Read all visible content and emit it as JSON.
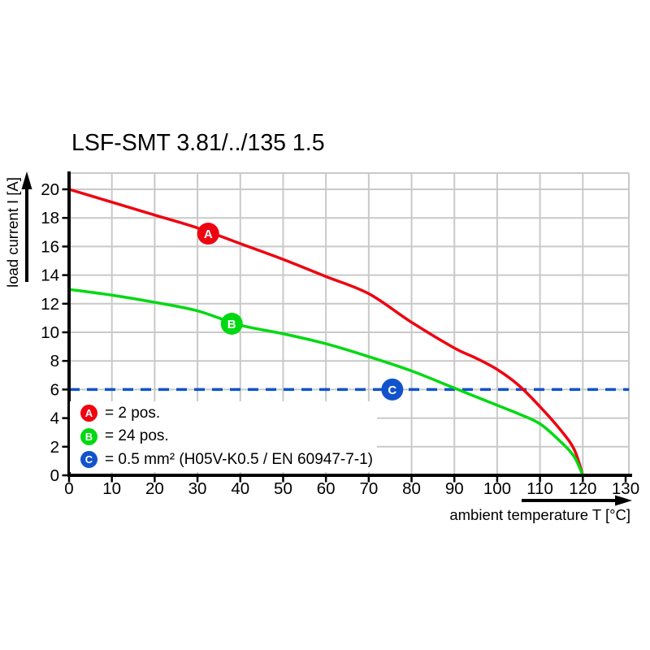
{
  "title": "LSF-SMT 3.81/../135 1.5",
  "axes": {
    "x_label": "ambient temperature T [°C]",
    "y_label": "load current I [A]"
  },
  "legend": {
    "items": [
      {
        "key": "A",
        "color": "#ee0410",
        "label": "= 2 pos."
      },
      {
        "key": "B",
        "color": "#00d911",
        "label": "= 24 pos."
      },
      {
        "key": "C",
        "color": "#1253cb",
        "label": "= 0.5 mm² (H05V-K0.5 / EN 60947-7-1)"
      }
    ]
  },
  "chart_data": {
    "type": "line",
    "title": "LSF-SMT 3.81/../135 1.5",
    "xlabel": "ambient temperature T [°C]",
    "ylabel": "load current I [A]",
    "xlim": [
      0,
      131
    ],
    "ylim": [
      0,
      21.1
    ],
    "x_ticks": [
      0,
      10,
      20,
      30,
      40,
      50,
      60,
      70,
      80,
      90,
      100,
      110,
      120,
      130
    ],
    "y_ticks": [
      0,
      2,
      4,
      6,
      8,
      10,
      12,
      14,
      16,
      18,
      20
    ],
    "grid": true,
    "grid_color": "#c9c9c9",
    "legend_position": "inside bottom-left",
    "series": [
      {
        "name": "A",
        "label": "2 pos.",
        "color": "#ee0410",
        "style": "solid",
        "marker_at": [
          32.5,
          16.9
        ],
        "points": [
          [
            0,
            20
          ],
          [
            10,
            19.1
          ],
          [
            20,
            18.2
          ],
          [
            30,
            17.3
          ],
          [
            40,
            16.2
          ],
          [
            50,
            15.1
          ],
          [
            60,
            13.9
          ],
          [
            70,
            12.7
          ],
          [
            80,
            10.7
          ],
          [
            90,
            8.9
          ],
          [
            95,
            8.2
          ],
          [
            100,
            7.4
          ],
          [
            105,
            6.3
          ],
          [
            110,
            4.8
          ],
          [
            115,
            3.1
          ],
          [
            118,
            1.8
          ],
          [
            120,
            0
          ]
        ]
      },
      {
        "name": "B",
        "label": "24 pos.",
        "color": "#00d911",
        "style": "solid",
        "marker_at": [
          38,
          10.6
        ],
        "points": [
          [
            0,
            13
          ],
          [
            10,
            12.6
          ],
          [
            20,
            12.1
          ],
          [
            30,
            11.5
          ],
          [
            40,
            10.5
          ],
          [
            50,
            9.9
          ],
          [
            60,
            9.2
          ],
          [
            70,
            8.3
          ],
          [
            80,
            7.3
          ],
          [
            90,
            6.1
          ],
          [
            100,
            4.9
          ],
          [
            105,
            4.3
          ],
          [
            110,
            3.6
          ],
          [
            115,
            2.3
          ],
          [
            118,
            1.3
          ],
          [
            120,
            0
          ]
        ]
      },
      {
        "name": "C",
        "label": "0.5 mm² (H05V-K0.5 / EN 60947-7-1)",
        "color": "#1253cb",
        "style": "dashed",
        "marker_at": [
          75.5,
          6
        ],
        "points": [
          [
            0,
            6
          ],
          [
            130.8,
            6
          ]
        ]
      }
    ]
  }
}
